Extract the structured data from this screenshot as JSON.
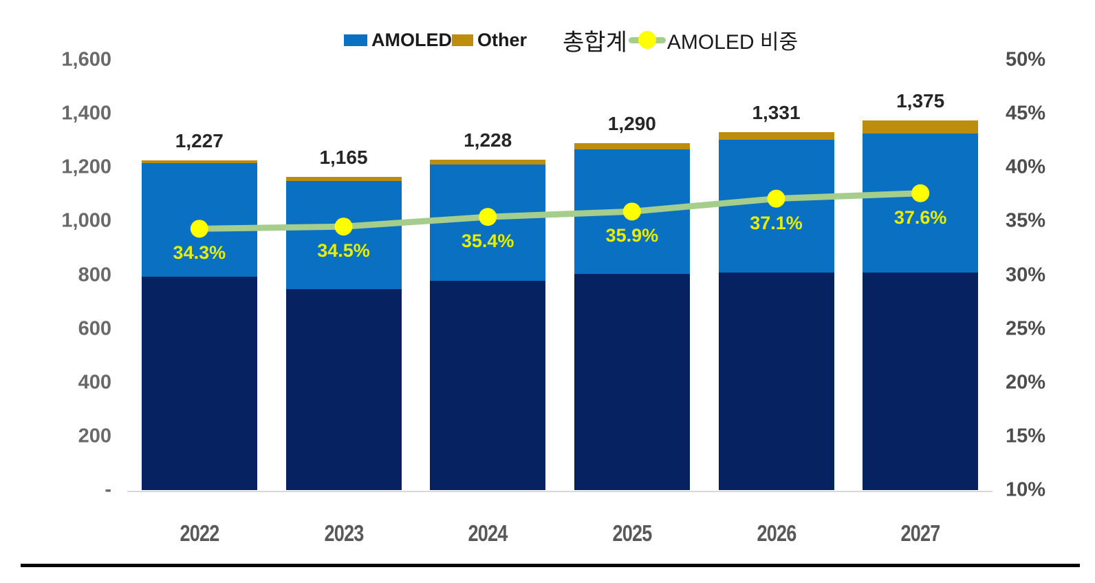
{
  "colors": {
    "amoled_bar": "#0a71c2",
    "other_bar": "#bd8d0d",
    "base_bar": "#062261",
    "trend_line": "#a5ce8d",
    "trend_dot": "#ffff00",
    "share_label_text": "#e9ee00",
    "left_axis_text": "#696969",
    "right_axis_text": "#4d4d4d",
    "x_axis_text": "#595959",
    "total_label_text": "#262626",
    "baseline": "#d9d9d9",
    "bottom_rule": "#050505"
  },
  "legend": {
    "items": [
      {
        "label": "AMOLED",
        "marker": "square",
        "color": "#0a71c2"
      },
      {
        "label": "Other",
        "marker": "square",
        "color": "#bd8d0d"
      },
      {
        "label": "총합계",
        "marker": "none"
      },
      {
        "label": "AMOLED 비중",
        "marker": "line-dot",
        "line_color": "#a5ce8d",
        "dot_color": "#ffff00"
      }
    ]
  },
  "chart_data": {
    "type": "combo-stacked-bar-line",
    "categories": [
      "2022",
      "2023",
      "2024",
      "2025",
      "2026",
      "2027"
    ],
    "series": [
      {
        "name": "",
        "role": "base-segment",
        "type": "bar",
        "color": "#062261",
        "values": [
          794,
          748,
          777,
          805,
          808,
          810
        ]
      },
      {
        "name": "AMOLED",
        "role": "amoled-segment",
        "type": "bar",
        "color": "#0a71c2",
        "values": [
          421,
          402,
          435,
          463,
          494,
          517
        ]
      },
      {
        "name": "Other",
        "role": "other-segment",
        "type": "bar",
        "color": "#bd8d0d",
        "values": [
          12,
          15,
          16,
          22,
          29,
          48
        ]
      },
      {
        "name": "총합계",
        "role": "total-labels",
        "type": "label",
        "values": [
          1227,
          1165,
          1228,
          1290,
          1331,
          1375
        ],
        "labels": [
          "1,227",
          "1,165",
          "1,228",
          "1,290",
          "1,331",
          "1,375"
        ]
      },
      {
        "name": "AMOLED 비중",
        "role": "share-line",
        "type": "line",
        "axis": "right",
        "color": "#a5ce8d",
        "marker_color": "#ffff00",
        "values": [
          34.3,
          34.5,
          35.4,
          35.9,
          37.1,
          37.6
        ],
        "labels": [
          "34.3%",
          "34.5%",
          "35.4%",
          "35.9%",
          "37.1%",
          "37.6%"
        ]
      }
    ],
    "left_axis": {
      "min": 0,
      "max": 1600,
      "ticks": [
        "1,600",
        "1,400",
        "1,200",
        "1,000",
        "800",
        "600",
        "400",
        "200",
        "-"
      ]
    },
    "right_axis": {
      "min": 10,
      "max": 50,
      "ticks": [
        "50%",
        "45%",
        "40%",
        "35%",
        "30%",
        "25%",
        "20%",
        "15%",
        "10%"
      ]
    },
    "grid": "off",
    "legend_position": "top"
  }
}
